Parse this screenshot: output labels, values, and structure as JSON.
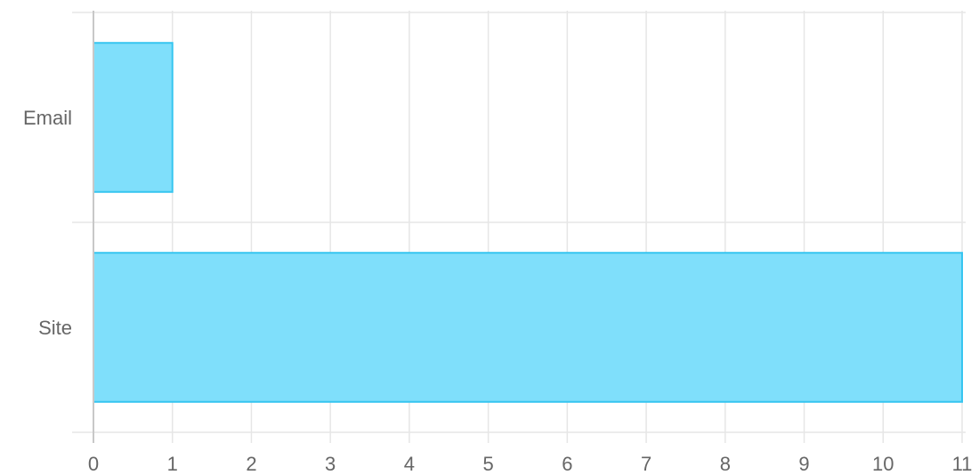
{
  "chart_data": {
    "type": "bar",
    "orientation": "horizontal",
    "categories": [
      "Email",
      "Site"
    ],
    "values": [
      1,
      11
    ],
    "title": "",
    "xlabel": "",
    "ylabel": "",
    "xlim": [
      0,
      11
    ],
    "x_ticks": [
      0,
      1,
      2,
      3,
      4,
      5,
      6,
      7,
      8,
      9,
      10,
      11
    ],
    "grid": true,
    "legend": "none",
    "colors": {
      "bar_fill": "#7fdffb",
      "bar_stroke": "#36c5f0",
      "grid": "#e6e6e6",
      "axis": "#c8c8c8",
      "text": "#666666"
    }
  }
}
